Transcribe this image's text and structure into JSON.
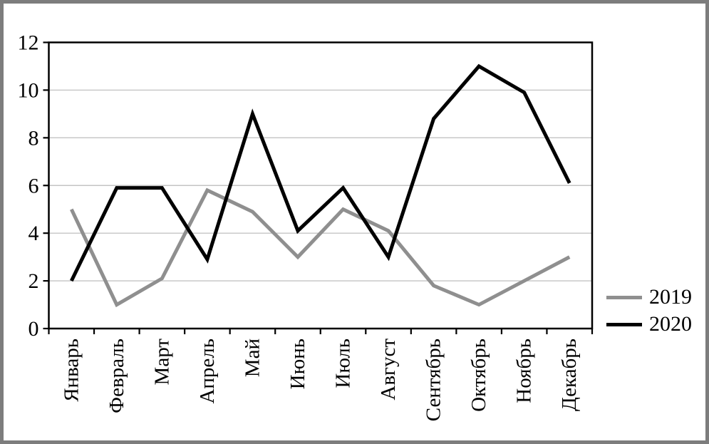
{
  "chart_data": {
    "type": "line",
    "title": "",
    "xlabel": "",
    "ylabel": "",
    "categories": [
      "Январь",
      "Февраль",
      "Март",
      "Апрель",
      "Май",
      "Июнь",
      "Июль",
      "Август",
      "Сентябрь",
      "Октябрь",
      "Ноябрь",
      "Декабрь"
    ],
    "y_ticks": [
      0,
      2,
      4,
      6,
      8,
      10,
      12
    ],
    "ylim": [
      0,
      12
    ],
    "grid": "horizontal gridlines at every 2 units",
    "x_label_rotation": "vertical (reading bottom to top)",
    "legend_position": "right, below middle",
    "series": [
      {
        "name": "2019",
        "color": "#8f8f8f",
        "values": [
          5,
          1,
          2.1,
          5.8,
          4.9,
          3,
          5,
          4.1,
          1.8,
          1,
          2,
          3
        ]
      },
      {
        "name": "2020",
        "color": "#000000",
        "values": [
          2,
          5.9,
          5.9,
          2.9,
          9,
          4.1,
          5.9,
          3,
          8.8,
          11,
          9.9,
          6.1
        ]
      }
    ],
    "colors": {
      "gridline": "#c4c4c4",
      "axis": "#000000",
      "outer_frame": "#7d7d7d",
      "background": "#ffffff"
    }
  }
}
